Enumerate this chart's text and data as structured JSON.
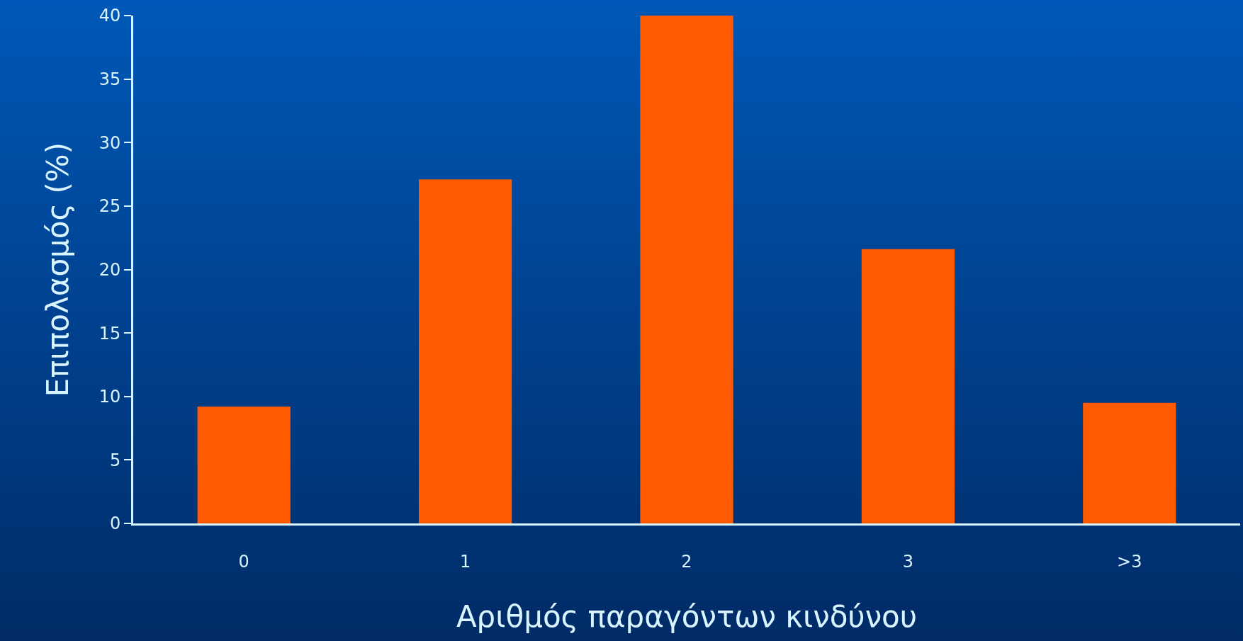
{
  "chart_data": {
    "type": "bar",
    "xlabel": "Αριθμός παραγόντων κινδύνου",
    "ylabel": "Επιπολασμός (%)",
    "categories": [
      "0",
      "1",
      "2",
      "3",
      ">3"
    ],
    "values": [
      9.2,
      27.1,
      40,
      21.6,
      9.5
    ],
    "color": "#ff5a00",
    "ylim": [
      0,
      40
    ],
    "yticks": [
      0,
      5,
      10,
      15,
      20,
      25,
      30,
      35,
      40
    ],
    "grid": false
  }
}
